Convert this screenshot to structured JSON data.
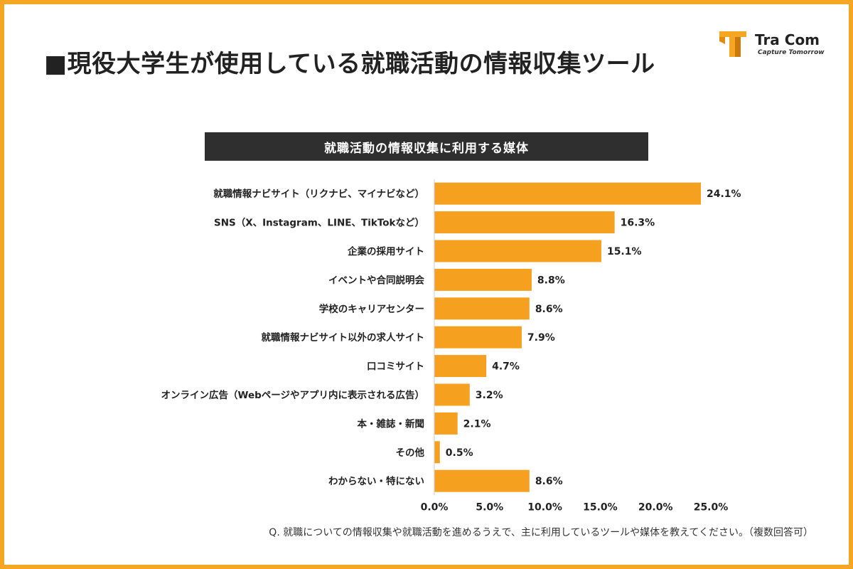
{
  "title": "■現役大学生が使用している就職活動の情報収集ツール",
  "logo": {
    "name": "Tra Com",
    "tagline": "Capture Tomorrow",
    "accent": "#f5a623"
  },
  "footnote": "Q. 就職についての情報収集や就職活動を進めるうえで、主に利用しているツールや媒体を教えてください。（複数回答可）",
  "chart_data": {
    "type": "bar",
    "orientation": "horizontal",
    "title": "就職活動の情報収集に利用する媒体",
    "categories": [
      "就職情報ナビサイト（リクナビ、マイナビなど）",
      "SNS（X、Instagram、LINE、TikTokなど）",
      "企業の採用サイト",
      "イベントや合同説明会",
      "学校のキャリアセンター",
      "就職情報ナビサイト以外の求人サイト",
      "口コミサイト",
      "オンライン広告（Webページやアプリ内に表示される広告）",
      "本・雑誌・新聞",
      "その他",
      "わからない・特にない"
    ],
    "values": [
      24.1,
      16.3,
      15.1,
      8.8,
      8.6,
      7.9,
      4.7,
      3.2,
      2.1,
      0.5,
      8.6
    ],
    "value_labels": [
      "24.1%",
      "16.3%",
      "15.1%",
      "8.8%",
      "8.6%",
      "7.9%",
      "4.7%",
      "3.2%",
      "2.1%",
      "0.5%",
      "8.6%"
    ],
    "xlim": [
      0,
      25
    ],
    "xticks": [
      0,
      5,
      10,
      15,
      20,
      25
    ],
    "xtick_labels": [
      "0.0%",
      "5.0%",
      "10.0%",
      "15.0%",
      "20.0%",
      "25.0%"
    ],
    "grid": false,
    "bar_color": "#f5a01e"
  }
}
